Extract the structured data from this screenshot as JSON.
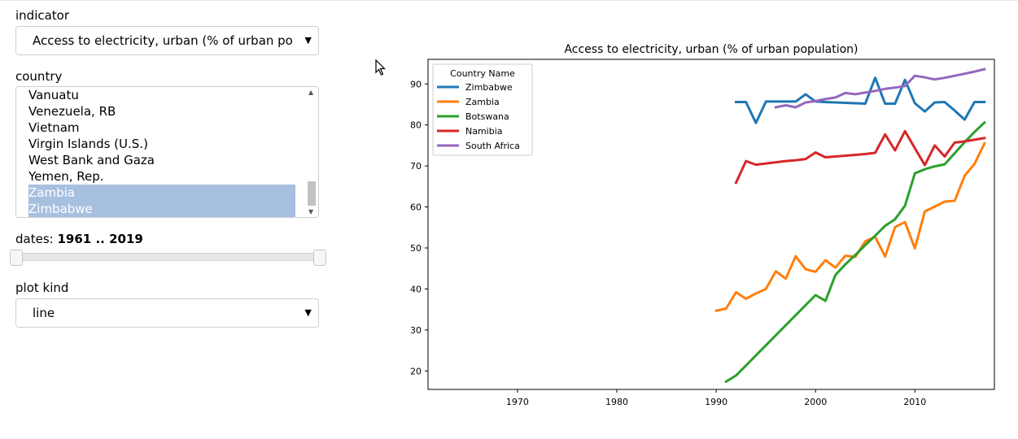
{
  "indicator": {
    "label": "indicator",
    "value": "Access to electricity, urban (% of urban population)"
  },
  "country": {
    "label": "country",
    "options": [
      {
        "label": "Vanuatu",
        "selected": false
      },
      {
        "label": "Venezuela, RB",
        "selected": false
      },
      {
        "label": "Vietnam",
        "selected": false
      },
      {
        "label": "Virgin Islands (U.S.)",
        "selected": false
      },
      {
        "label": "West Bank and Gaza",
        "selected": false
      },
      {
        "label": "Yemen, Rep.",
        "selected": false
      },
      {
        "label": "Zambia",
        "selected": true
      },
      {
        "label": "Zimbabwe",
        "selected": true
      }
    ]
  },
  "dates": {
    "label": "dates:",
    "range_text": "1961 .. 2019",
    "min": 1961,
    "max": 2019,
    "start": 1961,
    "end": 2019
  },
  "plot_kind": {
    "label": "plot kind",
    "value": "line"
  },
  "colors": {
    "selection": "#a8c0e0"
  },
  "chart_data": {
    "type": "line",
    "title": "Access to electricity, urban (% of urban population)",
    "xlim": [
      1961,
      2018
    ],
    "ylim": [
      15.5,
      96
    ],
    "xticks": [
      1970,
      1980,
      1990,
      2000,
      2010
    ],
    "yticks": [
      20,
      30,
      40,
      50,
      60,
      70,
      80,
      90
    ],
    "legend": {
      "title": "Country Name",
      "placement": "top-left"
    },
    "series": [
      {
        "name": "Zimbabwe",
        "color": "#1f77b4",
        "x": [
          1992,
          1993,
          1994,
          1995,
          1996,
          1997,
          1998,
          1999,
          2000,
          2001,
          2002,
          2003,
          2004,
          2005,
          2006,
          2007,
          2008,
          2009,
          2010,
          2011,
          2012,
          2013,
          2014,
          2015,
          2016,
          2017
        ],
        "y": [
          85.6,
          85.6,
          80.5,
          85.7,
          85.7,
          85.7,
          85.7,
          87.5,
          85.7,
          85.6,
          85.5,
          85.4,
          85.3,
          85.2,
          91.5,
          85.2,
          85.2,
          91.0,
          85.3,
          83.3,
          85.5,
          85.6,
          83.5,
          81.3,
          85.6,
          85.6
        ]
      },
      {
        "name": "Zambia",
        "color": "#ff7f0e",
        "x": [
          1990,
          1991,
          1992,
          1993,
          1994,
          1995,
          1996,
          1997,
          1998,
          1999,
          2000,
          2001,
          2002,
          2003,
          2004,
          2005,
          2006,
          2007,
          2008,
          2009,
          2010,
          2011,
          2012,
          2013,
          2014,
          2015,
          2016,
          2017
        ],
        "y": [
          34.7,
          35.2,
          39.2,
          37.6,
          38.9,
          40.0,
          44.3,
          42.5,
          48.0,
          44.8,
          44.2,
          47.0,
          45.2,
          48.1,
          47.8,
          51.6,
          52.7,
          47.9,
          55.1,
          56.3,
          49.9,
          58.9,
          60.1,
          61.3,
          61.5,
          67.6,
          70.5,
          75.5
        ]
      },
      {
        "name": "Botswana",
        "color": "#2ca02c",
        "x": [
          1991,
          1992,
          2000,
          2001,
          2002,
          2003,
          2004,
          2005,
          2006,
          2007,
          2008,
          2009,
          2010,
          2011,
          2012,
          2013,
          2014,
          2015,
          2016,
          2017
        ],
        "y": [
          17.4,
          18.9,
          38.5,
          37.1,
          43.4,
          46.0,
          48.3,
          50.7,
          53.0,
          55.4,
          57.0,
          60.3,
          68.2,
          69.2,
          69.9,
          70.4,
          73.1,
          75.8,
          78.3,
          80.6
        ]
      },
      {
        "name": "Namibia",
        "color": "#d62728",
        "x": [
          1992,
          1993,
          1994,
          1995,
          1996,
          1997,
          1998,
          1999,
          2000,
          2001,
          2002,
          2003,
          2004,
          2005,
          2006,
          2007,
          2008,
          2009,
          2010,
          2011,
          2012,
          2013,
          2014,
          2015,
          2016,
          2017
        ],
        "y": [
          65.9,
          71.2,
          70.3,
          70.6,
          70.9,
          71.2,
          71.4,
          71.7,
          73.3,
          72.1,
          72.3,
          72.5,
          72.7,
          72.9,
          73.2,
          77.7,
          73.8,
          78.5,
          74.3,
          70.2,
          75.0,
          72.3,
          75.7,
          76.0,
          76.4,
          76.8
        ]
      },
      {
        "name": "South Africa",
        "color": "#9467bd",
        "x": [
          1996,
          1997,
          1998,
          1999,
          2000,
          2001,
          2002,
          2003,
          2004,
          2005,
          2006,
          2007,
          2008,
          2009,
          2010,
          2011,
          2012,
          2013,
          2014,
          2015,
          2016,
          2017
        ],
        "y": [
          84.3,
          84.8,
          84.3,
          85.5,
          85.8,
          86.3,
          86.7,
          87.8,
          87.5,
          87.9,
          88.3,
          88.8,
          89.1,
          89.5,
          92.0,
          91.6,
          91.1,
          91.5,
          92.0,
          92.5,
          93.0,
          93.6
        ]
      }
    ]
  }
}
